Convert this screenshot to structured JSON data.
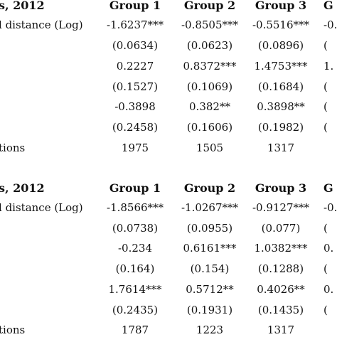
{
  "panels": [
    {
      "title": "s, 2012",
      "headers": [
        "Group 1",
        "Group 2",
        "Group 3",
        "G"
      ],
      "rows": [
        {
          "label": "l distance (Log)",
          "cells": [
            "-1.6237***",
            "-0.8505***",
            "-0.5516***",
            "-0."
          ]
        },
        {
          "label": "",
          "cells": [
            "(0.0634)",
            "(0.0623)",
            "(0.0896)",
            "("
          ]
        },
        {
          "label": "",
          "cells": [
            "0.2227",
            "0.8372***",
            "1.4753***",
            "1."
          ]
        },
        {
          "label": "",
          "cells": [
            "(0.1527)",
            "(0.1069)",
            "(0.1684)",
            "("
          ]
        },
        {
          "label": "",
          "cells": [
            "-0.3898",
            "0.382**",
            "0.3898**",
            "("
          ]
        },
        {
          "label": "",
          "cells": [
            "(0.2458)",
            "(0.1606)",
            "(0.1982)",
            "("
          ]
        },
        {
          "label": "tions",
          "cells": [
            "1975",
            "1505",
            "1317",
            ""
          ]
        }
      ]
    },
    {
      "title": "s, 2012",
      "headers": [
        "Group 1",
        "Group 2",
        "Group 3",
        "G"
      ],
      "rows": [
        {
          "label": "l distance (Log)",
          "cells": [
            "-1.8566***",
            "-1.0267***",
            "-0.9127***",
            "-0."
          ]
        },
        {
          "label": "",
          "cells": [
            "(0.0738)",
            "(0.0955)",
            "(0.077)",
            "("
          ]
        },
        {
          "label": "",
          "cells": [
            "-0.234",
            "0.6161***",
            "1.0382***",
            "0."
          ]
        },
        {
          "label": "",
          "cells": [
            "(0.164)",
            "(0.154)",
            "(0.1288)",
            "("
          ]
        },
        {
          "label": "",
          "cells": [
            "1.7614***",
            "0.5712**",
            "0.4026**",
            "0."
          ]
        },
        {
          "label": "",
          "cells": [
            "(0.2435)",
            "(0.1931)",
            "(0.1435)",
            "("
          ]
        },
        {
          "label": "tions",
          "cells": [
            "1787",
            "1223",
            "1317",
            ""
          ]
        }
      ]
    }
  ]
}
